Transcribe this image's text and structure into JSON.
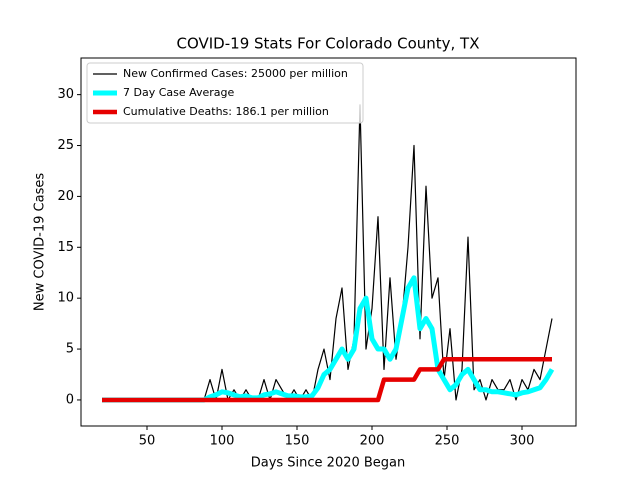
{
  "chart_data": {
    "type": "line",
    "title": "COVID-19 Stats For Colorado County, TX",
    "x_label": "Days Since 2020 Began",
    "y_label": "New COVID-19 Cases",
    "x": [
      20,
      24,
      28,
      32,
      36,
      40,
      44,
      48,
      52,
      56,
      60,
      64,
      68,
      72,
      76,
      80,
      84,
      88,
      92,
      96,
      100,
      104,
      108,
      112,
      116,
      120,
      124,
      128,
      132,
      136,
      140,
      144,
      148,
      152,
      156,
      160,
      164,
      168,
      172,
      176,
      180,
      184,
      188,
      192,
      196,
      200,
      204,
      208,
      212,
      216,
      220,
      224,
      228,
      232,
      236,
      240,
      244,
      248,
      252,
      256,
      260,
      264,
      268,
      272,
      276,
      280,
      284,
      288,
      292,
      296,
      300,
      304,
      308,
      312,
      316,
      320
    ],
    "series": [
      {
        "name": "New Confirmed Cases: 25000 per million",
        "color": "#000000",
        "values": [
          0,
          0,
          0,
          0,
          0,
          0,
          0,
          0,
          0,
          0,
          0,
          0,
          0,
          0,
          0,
          0,
          0,
          0,
          2,
          0,
          3,
          0,
          1,
          0,
          1,
          0,
          0,
          2,
          0,
          2,
          1,
          0,
          1,
          0,
          1,
          0,
          3,
          5,
          2,
          8,
          11,
          3,
          6,
          29,
          5,
          9,
          18,
          3,
          12,
          4,
          8,
          15,
          25,
          6,
          21,
          10,
          12,
          2,
          7,
          0,
          3,
          16,
          1,
          2,
          0,
          2,
          1,
          1,
          2,
          0,
          2,
          1,
          3,
          2,
          5,
          8
        ]
      },
      {
        "name": "7 Day Case Average",
        "color": "#00ffff",
        "values": [
          0,
          0,
          0,
          0,
          0,
          0,
          0,
          0,
          0,
          0,
          0,
          0,
          0,
          0,
          0,
          0,
          0,
          0,
          0.3,
          0.5,
          0.8,
          0.7,
          0.5,
          0.3,
          0.4,
          0.2,
          0.2,
          0.5,
          0.6,
          0.8,
          0.6,
          0.4,
          0.4,
          0.3,
          0.3,
          0.4,
          1.2,
          2.5,
          3,
          4,
          5,
          4,
          5,
          9,
          10,
          6,
          5,
          5,
          4,
          5,
          8,
          11,
          12,
          7,
          8,
          7,
          3,
          2,
          1,
          1.5,
          2.5,
          3,
          2,
          1,
          1,
          0.8,
          0.8,
          0.7,
          0.6,
          0.5,
          0.7,
          0.8,
          1,
          1.2,
          2,
          3
        ]
      },
      {
        "name": "Cumulative Deaths: 186.1 per million",
        "color": "#e60000",
        "values": [
          0,
          0,
          0,
          0,
          0,
          0,
          0,
          0,
          0,
          0,
          0,
          0,
          0,
          0,
          0,
          0,
          0,
          0,
          0,
          0,
          0,
          0,
          0,
          0,
          0,
          0,
          0,
          0,
          0,
          0,
          0,
          0,
          0,
          0,
          0,
          0,
          0,
          0,
          0,
          0,
          0,
          0,
          0,
          0,
          0,
          0,
          0,
          2,
          2,
          2,
          2,
          2,
          2,
          3,
          3,
          3,
          3,
          4,
          4,
          4,
          4,
          4,
          4,
          4,
          4,
          4,
          4,
          4,
          4,
          4,
          4,
          4,
          4,
          4,
          4,
          4
        ]
      }
    ],
    "xlim": [
      6,
      336
    ],
    "xticks": [
      50,
      100,
      150,
      200,
      250,
      300
    ],
    "ylim": [
      -2.56,
      33.6
    ],
    "yticks": [
      0,
      5,
      10,
      15,
      20,
      25,
      30
    ],
    "legend": "upper left"
  }
}
